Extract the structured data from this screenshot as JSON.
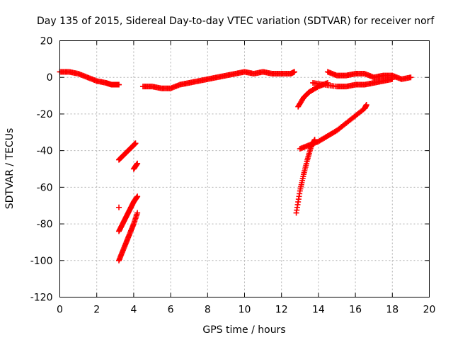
{
  "chart_data": {
    "type": "scatter",
    "title": "Day 135 of 2015, Sidereal Day-to-day VTEC variation (SDTVAR) for receiver norf",
    "xlabel": "GPS time / hours",
    "ylabel": "SDTVAR / TECUs",
    "xlim": [
      0,
      20
    ],
    "ylim": [
      -120,
      20
    ],
    "xticks": [
      0,
      2,
      4,
      6,
      8,
      10,
      12,
      14,
      16,
      18,
      20
    ],
    "yticks": [
      -120,
      -100,
      -80,
      -60,
      -40,
      -20,
      0,
      20
    ],
    "grid": true,
    "marker": "plus",
    "color": "#ff0000",
    "series": [
      {
        "x": [
          0.0,
          0.5,
          1.0,
          1.5,
          2.0,
          2.5,
          2.8,
          3.0,
          3.2
        ],
        "y": [
          3,
          3,
          2,
          0,
          -2,
          -3,
          -4,
          -4,
          -4
        ]
      },
      {
        "x": [
          4.5,
          5.0,
          5.5,
          6.0,
          6.5,
          7.0,
          7.5,
          8.0,
          8.5,
          9.0,
          9.5,
          10.0,
          10.5,
          11.0,
          11.5,
          12.0,
          12.5,
          12.7
        ],
        "y": [
          -5,
          -5,
          -6,
          -6,
          -4,
          -3,
          -2,
          -1,
          0,
          1,
          2,
          3,
          2,
          3,
          2,
          2,
          2,
          3
        ]
      },
      {
        "x": [
          3.2,
          3.4,
          3.6,
          3.8,
          4.0,
          4.1
        ],
        "y": [
          -45,
          -43,
          -41,
          -39,
          -37,
          -36
        ]
      },
      {
        "x": [
          4.0,
          4.2
        ],
        "y": [
          -50,
          -47
        ]
      },
      {
        "x": [
          3.2
        ],
        "y": [
          -71
        ]
      },
      {
        "x": [
          3.2,
          3.4,
          3.6,
          3.8,
          4.0,
          4.2
        ],
        "y": [
          -84,
          -80,
          -76,
          -72,
          -68,
          -65
        ]
      },
      {
        "x": [
          3.2,
          3.4,
          3.6,
          3.8,
          4.0,
          4.2
        ],
        "y": [
          -100,
          -95,
          -90,
          -85,
          -80,
          -74
        ]
      },
      {
        "x": [
          12.9,
          13.2,
          13.5,
          14.0,
          14.5
        ],
        "y": [
          -16,
          -11,
          -8,
          -5,
          -3
        ]
      },
      {
        "x": [
          13.7,
          14.3,
          15.0,
          15.5,
          16.0,
          16.5,
          17.0,
          17.5,
          18.0
        ],
        "y": [
          -3,
          -4,
          -5,
          -5,
          -4,
          -4,
          -3,
          -2,
          -1
        ]
      },
      {
        "x": [
          14.5,
          15.0,
          15.5,
          16.0,
          16.5,
          17.0,
          17.5,
          18.0,
          18.5,
          19.0
        ],
        "y": [
          3,
          1,
          1,
          2,
          2,
          0,
          1,
          1,
          -1,
          0
        ]
      },
      {
        "x": [
          12.8,
          13.0,
          13.2,
          13.4,
          13.6,
          13.8
        ],
        "y": [
          -74,
          -62,
          -53,
          -45,
          -38,
          -34
        ]
      },
      {
        "x": [
          13.0,
          13.5,
          14.0,
          14.5,
          15.0,
          15.5,
          16.0,
          16.5,
          16.6
        ],
        "y": [
          -39,
          -37,
          -35,
          -32,
          -29,
          -25,
          -21,
          -17,
          -15
        ]
      }
    ]
  }
}
